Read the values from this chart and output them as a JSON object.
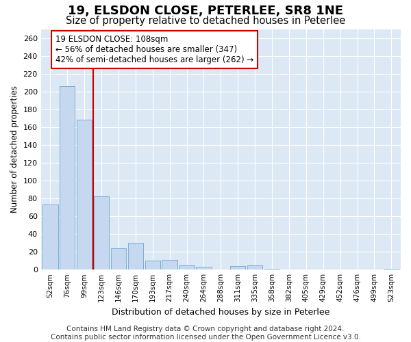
{
  "title": "19, ELSDON CLOSE, PETERLEE, SR8 1NE",
  "subtitle": "Size of property relative to detached houses in Peterlee",
  "xlabel": "Distribution of detached houses by size in Peterlee",
  "ylabel": "Number of detached properties",
  "categories": [
    "52sqm",
    "76sqm",
    "99sqm",
    "123sqm",
    "146sqm",
    "170sqm",
    "193sqm",
    "217sqm",
    "240sqm",
    "264sqm",
    "288sqm",
    "311sqm",
    "335sqm",
    "358sqm",
    "382sqm",
    "405sqm",
    "429sqm",
    "452sqm",
    "476sqm",
    "499sqm",
    "523sqm"
  ],
  "values": [
    73,
    206,
    168,
    82,
    24,
    30,
    10,
    11,
    5,
    3,
    0,
    4,
    5,
    1,
    0,
    0,
    0,
    0,
    0,
    0,
    1
  ],
  "bar_color": "#c5d8ef",
  "bar_edge_color": "#7bafd4",
  "vline_x_pos": 2.5,
  "vline_color": "#cc0000",
  "annotation_text": "19 ELSDON CLOSE: 108sqm\n← 56% of detached houses are smaller (347)\n42% of semi-detached houses are larger (262) →",
  "annotation_box_color": "#ffffff",
  "annotation_box_edge": "#cc0000",
  "ylim": [
    0,
    270
  ],
  "yticks": [
    0,
    20,
    40,
    60,
    80,
    100,
    120,
    140,
    160,
    180,
    200,
    220,
    240,
    260
  ],
  "fig_bg_color": "#ffffff",
  "plot_bg_color": "#dce9f5",
  "grid_color": "#ffffff",
  "footer": "Contains HM Land Registry data © Crown copyright and database right 2024.\nContains public sector information licensed under the Open Government Licence v3.0.",
  "title_fontsize": 13,
  "subtitle_fontsize": 10.5,
  "footer_fontsize": 7.5,
  "annot_fontsize": 8.5
}
